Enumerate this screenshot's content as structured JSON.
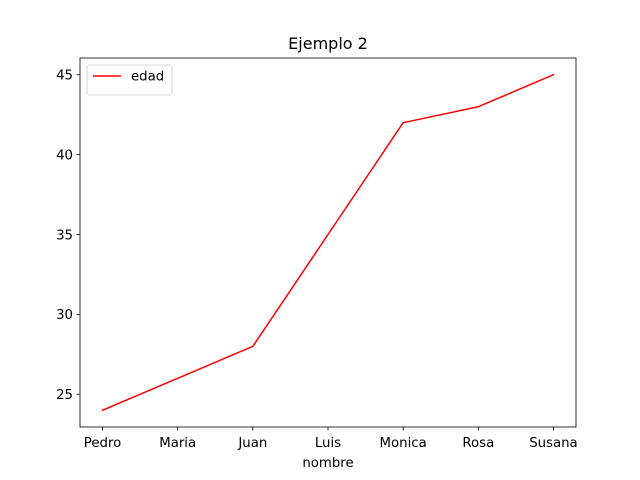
{
  "chart_data": {
    "type": "line",
    "title": "Ejemplo 2",
    "xlabel": "nombre",
    "ylabel": "",
    "categories": [
      "Pedro",
      "Maria",
      "Juan",
      "Luis",
      "Monica",
      "Rosa",
      "Susana"
    ],
    "series": [
      {
        "name": "edad",
        "color": "#ff0000",
        "values": [
          24,
          26,
          28,
          35,
          42,
          43,
          45
        ]
      }
    ],
    "ylim": [
      22.95,
      46.05
    ],
    "yticks": [
      25,
      30,
      35,
      40,
      45
    ],
    "grid": false,
    "legend_position": "upper-left"
  }
}
